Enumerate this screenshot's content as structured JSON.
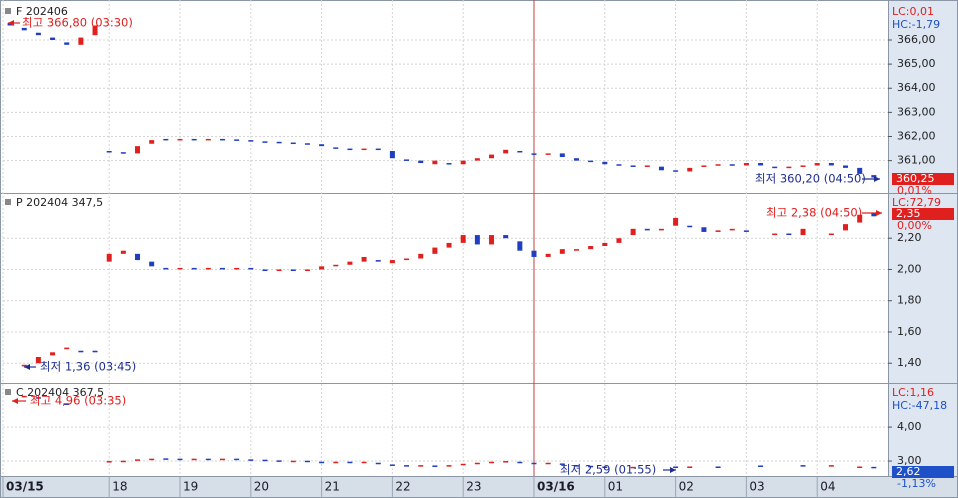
{
  "x_axis": {
    "xlim": [
      0,
      125
    ],
    "xticks": [
      {
        "value": 0,
        "label": "03/15"
      },
      {
        "value": 15,
        "label": "18"
      },
      {
        "value": 25,
        "label": "19"
      },
      {
        "value": 35,
        "label": "20"
      },
      {
        "value": 45,
        "label": "21"
      },
      {
        "value": 55,
        "label": "22"
      },
      {
        "value": 65,
        "label": "23"
      },
      {
        "value": 75,
        "label": "03/16"
      },
      {
        "value": 85,
        "label": "01"
      },
      {
        "value": 95,
        "label": "02"
      },
      {
        "value": 105,
        "label": "03"
      },
      {
        "value": 115,
        "label": "04"
      }
    ]
  },
  "chart_data": [
    {
      "type": "candlestick",
      "title": "F 202406",
      "up_color": "#e0201f",
      "down_color": "#1f3fc0",
      "lc_label": "LC:0,01",
      "hc_label": "HC:-1,79",
      "last_label": "360,25",
      "change_label": "0,01%",
      "last_color": "#e0201f",
      "change_color": "#e0201f",
      "annotations": [
        {
          "text": "최고 366,80 (03:30)",
          "color": "#e0201f"
        },
        {
          "text": "최저 360,20 (04:50)",
          "color": "#1f2f90"
        }
      ],
      "ylim": [
        359.7,
        367.45
      ],
      "yticks": [
        {
          "value": 361,
          "label": "361,00"
        },
        {
          "value": 362,
          "label": "362,00"
        },
        {
          "value": 363,
          "label": "363,00"
        },
        {
          "value": 364,
          "label": "364,00"
        },
        {
          "value": 365,
          "label": "365,00"
        },
        {
          "value": 366,
          "label": "366,00"
        }
      ],
      "x": [
        1,
        3,
        5,
        7,
        9,
        11,
        13,
        15,
        17,
        19,
        21,
        23,
        25,
        27,
        29,
        31,
        33,
        35,
        37,
        39,
        41,
        43,
        45,
        47,
        49,
        51,
        53,
        55,
        57,
        59,
        61,
        63,
        65,
        67,
        69,
        71,
        73,
        75,
        77,
        79,
        81,
        83,
        85,
        87,
        89,
        91,
        93,
        95,
        97,
        99,
        101,
        103,
        105,
        107,
        109,
        111,
        113,
        115,
        117,
        119,
        121,
        123
      ],
      "open": [
        366.7,
        366.5,
        366.3,
        366.1,
        365.9,
        365.8,
        366.2,
        361.4,
        361.35,
        361.3,
        361.7,
        361.9,
        361.88,
        361.9,
        361.88,
        361.9,
        361.88,
        361.85,
        361.8,
        361.78,
        361.75,
        361.72,
        361.68,
        361.55,
        361.5,
        361.48,
        361.5,
        361.4,
        361.05,
        361.0,
        360.85,
        360.9,
        360.85,
        361.0,
        361.1,
        361.3,
        361.4,
        361.3,
        361.25,
        361.3,
        361.1,
        361.0,
        360.95,
        360.85,
        360.8,
        360.75,
        360.75,
        360.6,
        360.55,
        360.75,
        360.8,
        360.85,
        360.8,
        360.9,
        360.75,
        360.7,
        360.75,
        360.8,
        360.9,
        360.8,
        360.7,
        360.4
      ],
      "close": [
        366.6,
        366.4,
        366.2,
        366.0,
        365.8,
        366.1,
        366.6,
        361.35,
        361.3,
        361.6,
        361.85,
        361.88,
        361.9,
        361.88,
        361.9,
        361.88,
        361.85,
        361.82,
        361.78,
        361.75,
        361.7,
        361.68,
        361.6,
        361.5,
        361.48,
        361.5,
        361.45,
        361.1,
        361.0,
        360.9,
        361.0,
        360.85,
        361.0,
        361.1,
        361.25,
        361.45,
        361.35,
        361.25,
        361.3,
        361.15,
        361.0,
        360.95,
        360.85,
        360.8,
        360.75,
        360.8,
        360.6,
        360.55,
        360.7,
        360.8,
        360.85,
        360.8,
        360.9,
        360.8,
        360.7,
        360.75,
        360.8,
        360.9,
        360.8,
        360.7,
        360.45,
        360.3
      ]
    },
    {
      "type": "candlestick",
      "title": "P 202404 347,5",
      "up_color": "#e0201f",
      "down_color": "#1f3fc0",
      "lc_label": "LC:72,79",
      "last_label": "2,35",
      "change_label": "0,00%",
      "last_color": "#e0201f",
      "change_color": "#e0201f",
      "annotations": [
        {
          "text": "최고 2,38 (04:50)",
          "color": "#e0201f"
        },
        {
          "text": "최저 1,36 (03:45)",
          "color": "#1f2f90"
        }
      ],
      "ylim": [
        1.28,
        2.47
      ],
      "yticks": [
        {
          "value": 1.4,
          "label": "1,40"
        },
        {
          "value": 1.6,
          "label": "1,60"
        },
        {
          "value": 1.8,
          "label": "1,80"
        },
        {
          "value": 2.0,
          "label": "2,00"
        },
        {
          "value": 2.2,
          "label": "2,20"
        }
      ],
      "x": [
        3,
        5,
        7,
        9,
        11,
        13,
        15,
        17,
        19,
        21,
        23,
        25,
        27,
        29,
        31,
        33,
        35,
        37,
        39,
        41,
        43,
        45,
        47,
        49,
        51,
        53,
        55,
        57,
        59,
        61,
        63,
        65,
        67,
        69,
        71,
        73,
        75,
        77,
        79,
        81,
        83,
        85,
        87,
        89,
        91,
        93,
        95,
        97,
        99,
        101,
        103,
        105,
        109,
        111,
        113,
        117,
        119,
        121,
        123
      ],
      "open": [
        1.38,
        1.4,
        1.45,
        1.49,
        1.48,
        1.48,
        2.05,
        2.1,
        2.1,
        2.05,
        2.01,
        2.0,
        2.01,
        2.0,
        2.01,
        2.0,
        2.01,
        2.0,
        1.99,
        2.0,
        1.99,
        2.0,
        2.02,
        2.03,
        2.05,
        2.06,
        2.04,
        2.06,
        2.07,
        2.1,
        2.14,
        2.17,
        2.22,
        2.16,
        2.22,
        2.18,
        2.12,
        2.08,
        2.1,
        2.12,
        2.13,
        2.15,
        2.17,
        2.22,
        2.26,
        2.25,
        2.28,
        2.28,
        2.27,
        2.24,
        2.25,
        2.25,
        2.22,
        2.23,
        2.22,
        2.22,
        2.25,
        2.3,
        2.36
      ],
      "close": [
        1.39,
        1.44,
        1.47,
        1.5,
        1.47,
        1.47,
        2.1,
        2.12,
        2.06,
        2.02,
        2.0,
        2.01,
        2.0,
        2.01,
        2.0,
        2.01,
        2.0,
        1.99,
        2.0,
        1.99,
        2.0,
        2.02,
        2.03,
        2.05,
        2.08,
        2.05,
        2.06,
        2.07,
        2.1,
        2.14,
        2.17,
        2.22,
        2.16,
        2.22,
        2.2,
        2.12,
        2.08,
        2.1,
        2.13,
        2.13,
        2.15,
        2.17,
        2.2,
        2.26,
        2.25,
        2.26,
        2.33,
        2.27,
        2.24,
        2.25,
        2.26,
        2.24,
        2.23,
        2.22,
        2.26,
        2.23,
        2.29,
        2.35,
        2.34
      ]
    },
    {
      "type": "candlestick",
      "title": "C 202404 367,5",
      "up_color": "#e0201f",
      "down_color": "#1f3fc0",
      "lc_label": "LC:1,16",
      "hc_label": "HC:-47,18",
      "last_label": "2,62",
      "change_label": "-1,13%",
      "last_color": "#1e50c8",
      "change_color": "#1e50c8",
      "annotations": [
        {
          "text": "최고 4,96 (03:35)",
          "color": "#e0201f"
        },
        {
          "text": "최저 2,59 (01:55)",
          "color": "#1f2f90"
        }
      ],
      "ylim": [
        2.56,
        5.21
      ],
      "yticks": [
        {
          "value": 3,
          "label": "3,00"
        },
        {
          "value": 4,
          "label": "4,00"
        }
      ],
      "x": [
        3,
        5,
        9,
        15,
        17,
        19,
        21,
        23,
        25,
        27,
        29,
        31,
        33,
        35,
        37,
        39,
        41,
        43,
        45,
        47,
        49,
        51,
        53,
        55,
        57,
        59,
        61,
        63,
        65,
        67,
        69,
        71,
        73,
        75,
        77,
        79,
        81,
        83,
        85,
        89,
        95,
        97,
        101,
        107,
        113,
        117,
        121,
        123
      ],
      "open": [
        4.9,
        4.88,
        4.7,
        3.0,
        3.0,
        3.02,
        3.06,
        3.08,
        3.07,
        3.06,
        3.07,
        3.06,
        3.07,
        3.05,
        3.04,
        3.02,
        3.0,
        3.01,
        2.98,
        2.97,
        2.98,
        2.97,
        2.95,
        2.9,
        2.88,
        2.86,
        2.87,
        2.86,
        2.88,
        2.92,
        2.95,
        2.98,
        2.98,
        2.95,
        2.92,
        2.93,
        2.88,
        2.86,
        2.84,
        2.82,
        2.84,
        2.82,
        2.84,
        2.87,
        2.88,
        2.87,
        2.83,
        2.83
      ],
      "close": [
        4.92,
        4.85,
        4.65,
        3.0,
        3.01,
        3.05,
        3.07,
        3.07,
        3.06,
        3.07,
        3.06,
        3.07,
        3.05,
        3.04,
        3.02,
        3.0,
        3.01,
        3.0,
        2.97,
        2.98,
        2.97,
        2.98,
        2.92,
        2.88,
        2.87,
        2.88,
        2.86,
        2.88,
        2.92,
        2.95,
        2.98,
        3.0,
        2.95,
        2.93,
        2.95,
        2.9,
        2.86,
        2.85,
        2.83,
        2.83,
        2.83,
        2.84,
        2.82,
        2.85,
        2.86,
        2.88,
        2.84,
        2.82
      ]
    }
  ]
}
